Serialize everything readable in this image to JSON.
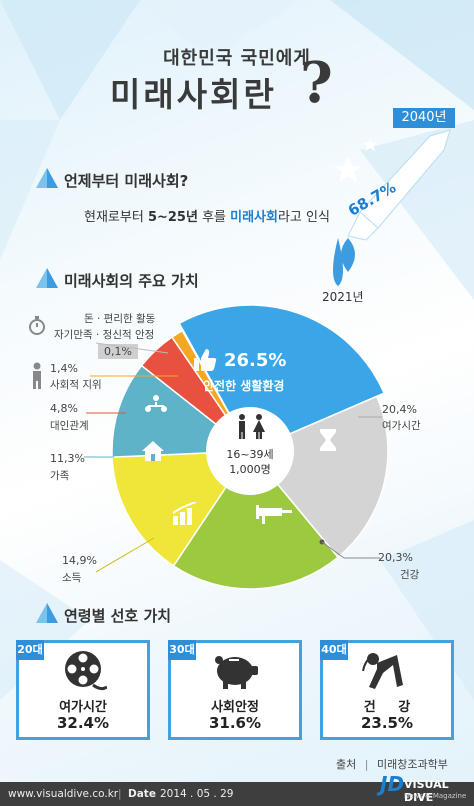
{
  "header": {
    "line1": "대한민국 국민에게",
    "line2": "미래사회란",
    "qmark": "?"
  },
  "section1": {
    "title": "언제부터 미래사회?",
    "text_before": "현재로부터 ",
    "text_span": "5~25년",
    "text_after1": " 후를 ",
    "text_highlight": "미래사회",
    "text_after2": "라고 인식"
  },
  "rocket": {
    "year_top": "2040년",
    "year_bottom": "2021년",
    "percent": "68.7%"
  },
  "section2": {
    "title": "미래사회의 주요 가치"
  },
  "chart_data": {
    "type": "pie",
    "center_label_line1": "16~39세",
    "center_label_line2": "1,000명",
    "slices": [
      {
        "label": "안전한 생활환경",
        "value": 26.5,
        "value_text": "26.5%",
        "color": "#3aa6e8",
        "icon": "thumbs-up-icon"
      },
      {
        "label": "여가시간",
        "value": 20.4,
        "value_text": "20,4%",
        "color": "#d4d4d4",
        "icon": "hourglass-icon"
      },
      {
        "label": "건강",
        "value": 20.3,
        "value_text": "20,3%",
        "color": "#9cc93f",
        "icon": "syringe-icon"
      },
      {
        "label": "소득",
        "value": 14.9,
        "value_text": "14,9%",
        "color": "#f0e63a",
        "icon": "bar-chart-icon"
      },
      {
        "label": "가족",
        "value": 11.3,
        "value_text": "11,3%",
        "color": "#5fb3c9",
        "icon": "house-icon"
      },
      {
        "label": "대인관계",
        "value": 4.8,
        "value_text": "4,8%",
        "color": "#e8503f",
        "icon": "people-icon"
      },
      {
        "label": "사회적 지위",
        "value": 1.4,
        "value_text": "1,4%",
        "color": "#f5a623",
        "icon": "person-icon"
      },
      {
        "label": "자기만족 · 정신적 안정",
        "value": 0.1,
        "value_text": "0,1%",
        "color": "#e6e6e6",
        "icon": "stopwatch-icon"
      }
    ],
    "note_top": "돈 · 편리한 활동"
  },
  "section3": {
    "title": "연령별 선호 가치",
    "cards": [
      {
        "tag": "20대",
        "label": "여가시간",
        "value": "32.4%",
        "icon": "film-reel-icon"
      },
      {
        "tag": "30대",
        "label": "사회안정",
        "value": "31.6%",
        "icon": "piggy-bank-icon"
      },
      {
        "tag": "40대",
        "label": "건     강",
        "value": "23.5%",
        "icon": "exercise-icon"
      }
    ]
  },
  "source": {
    "label": "출처",
    "value": "미래창조과학부"
  },
  "footer": {
    "site": "www.visualdive.co.kr",
    "date_label": "Date",
    "date": "2014 . 05 . 29",
    "brand": "VISUAL DIVE",
    "brand_sub": "News & Magazine",
    "logo": "JD"
  }
}
